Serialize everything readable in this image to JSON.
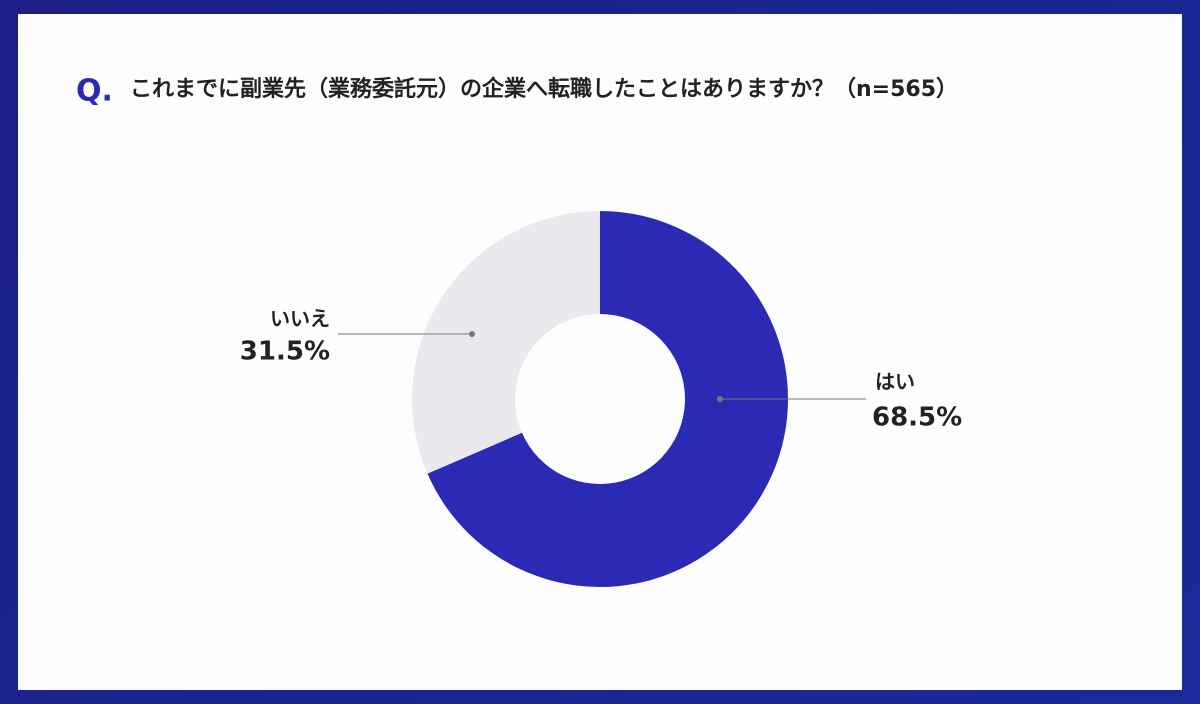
{
  "chart_data": {
    "type": "donut",
    "title_prefix": "Q.",
    "title": "これまでに副業先（業務委託元）の企業へ転職したことはありますか？（n=565）",
    "categories": [
      "はい",
      "いいえ"
    ],
    "values": [
      68.5,
      31.5
    ],
    "value_labels": [
      "68.5%",
      "31.5%"
    ],
    "colors": [
      "#2b2ab5",
      "#ebe9ee"
    ]
  }
}
